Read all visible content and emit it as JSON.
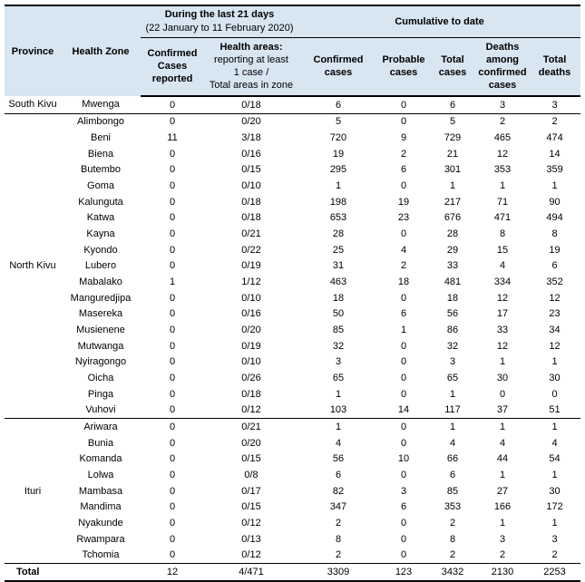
{
  "colors": {
    "header_bg": "#d8e6f2",
    "border": "#000000",
    "text": "#000000"
  },
  "table": {
    "header": {
      "province": "Province",
      "health_zone": "Health Zone",
      "last21_group": {
        "title": "During the last 21 days",
        "subtitle": "(22 January to 11 February 2020)"
      },
      "cumulative_group": "Cumulative to date",
      "sub_confirmed_reported": "Confirmed\nCases\nreported",
      "sub_health_areas_title": "Health areas:",
      "sub_health_areas_rest": "reporting at least\n1 case /\nTotal areas in zone",
      "sub_confirmed_cases": "Confirmed\ncases",
      "sub_probable_cases": "Probable\ncases",
      "sub_total_cases": "Total\ncases",
      "sub_deaths_confirmed": "Deaths\namong\nconfirmed\ncases",
      "sub_total_deaths": "Total\ndeaths"
    },
    "sections": [
      {
        "province": "South Kivu",
        "rows": [
          {
            "health_zone": "Mwenga",
            "values": [
              "0",
              "0/18",
              "6",
              "0",
              "6",
              "3",
              "3"
            ]
          }
        ]
      },
      {
        "province": "North Kivu",
        "rows": [
          {
            "health_zone": "Alimbongo",
            "values": [
              "0",
              "0/20",
              "5",
              "0",
              "5",
              "2",
              "2"
            ]
          },
          {
            "health_zone": "Beni",
            "values": [
              "11",
              "3/18",
              "720",
              "9",
              "729",
              "465",
              "474"
            ]
          },
          {
            "health_zone": "Biena",
            "values": [
              "0",
              "0/16",
              "19",
              "2",
              "21",
              "12",
              "14"
            ]
          },
          {
            "health_zone": "Butembo",
            "values": [
              "0",
              "0/15",
              "295",
              "6",
              "301",
              "353",
              "359"
            ]
          },
          {
            "health_zone": "Goma",
            "values": [
              "0",
              "0/10",
              "1",
              "0",
              "1",
              "1",
              "1"
            ]
          },
          {
            "health_zone": "Kalunguta",
            "values": [
              "0",
              "0/18",
              "198",
              "19",
              "217",
              "71",
              "90"
            ]
          },
          {
            "health_zone": "Katwa",
            "values": [
              "0",
              "0/18",
              "653",
              "23",
              "676",
              "471",
              "494"
            ]
          },
          {
            "health_zone": "Kayna",
            "values": [
              "0",
              "0/21",
              "28",
              "0",
              "28",
              "8",
              "8"
            ]
          },
          {
            "health_zone": "Kyondo",
            "values": [
              "0",
              "0/22",
              "25",
              "4",
              "29",
              "15",
              "19"
            ]
          },
          {
            "health_zone": "Lubero",
            "values": [
              "0",
              "0/19",
              "31",
              "2",
              "33",
              "4",
              "6"
            ]
          },
          {
            "health_zone": "Mabalako",
            "values": [
              "1",
              "1/12",
              "463",
              "18",
              "481",
              "334",
              "352"
            ]
          },
          {
            "health_zone": "Manguredjipa",
            "values": [
              "0",
              "0/10",
              "18",
              "0",
              "18",
              "12",
              "12"
            ]
          },
          {
            "health_zone": "Masereka",
            "values": [
              "0",
              "0/16",
              "50",
              "6",
              "56",
              "17",
              "23"
            ]
          },
          {
            "health_zone": "Musienene",
            "values": [
              "0",
              "0/20",
              "85",
              "1",
              "86",
              "33",
              "34"
            ]
          },
          {
            "health_zone": "Mutwanga",
            "values": [
              "0",
              "0/19",
              "32",
              "0",
              "32",
              "12",
              "12"
            ]
          },
          {
            "health_zone": "Nyiragongo",
            "values": [
              "0",
              "0/10",
              "3",
              "0",
              "3",
              "1",
              "1"
            ]
          },
          {
            "health_zone": "Oicha",
            "values": [
              "0",
              "0/26",
              "65",
              "0",
              "65",
              "30",
              "30"
            ]
          },
          {
            "health_zone": "Pinga",
            "values": [
              "0",
              "0/18",
              "1",
              "0",
              "1",
              "0",
              "0"
            ]
          },
          {
            "health_zone": "Vuhovi",
            "values": [
              "0",
              "0/12",
              "103",
              "14",
              "117",
              "37",
              "51"
            ]
          }
        ]
      },
      {
        "province": "Ituri",
        "rows": [
          {
            "health_zone": "Ariwara",
            "values": [
              "0",
              "0/21",
              "1",
              "0",
              "1",
              "1",
              "1"
            ]
          },
          {
            "health_zone": "Bunia",
            "values": [
              "0",
              "0/20",
              "4",
              "0",
              "4",
              "4",
              "4"
            ]
          },
          {
            "health_zone": "Komanda",
            "values": [
              "0",
              "0/15",
              "56",
              "10",
              "66",
              "44",
              "54"
            ]
          },
          {
            "health_zone": "Lolwa",
            "values": [
              "0",
              "0/8",
              "6",
              "0",
              "6",
              "1",
              "1"
            ]
          },
          {
            "health_zone": "Mambasa",
            "values": [
              "0",
              "0/17",
              "82",
              "3",
              "85",
              "27",
              "30"
            ]
          },
          {
            "health_zone": "Mandima",
            "values": [
              "0",
              "0/15",
              "347",
              "6",
              "353",
              "166",
              "172"
            ]
          },
          {
            "health_zone": "Nyakunde",
            "values": [
              "0",
              "0/12",
              "2",
              "0",
              "2",
              "1",
              "1"
            ]
          },
          {
            "health_zone": "Rwampara",
            "values": [
              "0",
              "0/13",
              "8",
              "0",
              "8",
              "3",
              "3"
            ]
          },
          {
            "health_zone": "Tchomia",
            "values": [
              "0",
              "0/12",
              "2",
              "0",
              "2",
              "2",
              "2"
            ]
          }
        ]
      }
    ],
    "total_row": {
      "label": "Total",
      "values": [
        "12",
        "4/471",
        "3309",
        "123",
        "3432",
        "2130",
        "2253"
      ]
    }
  }
}
